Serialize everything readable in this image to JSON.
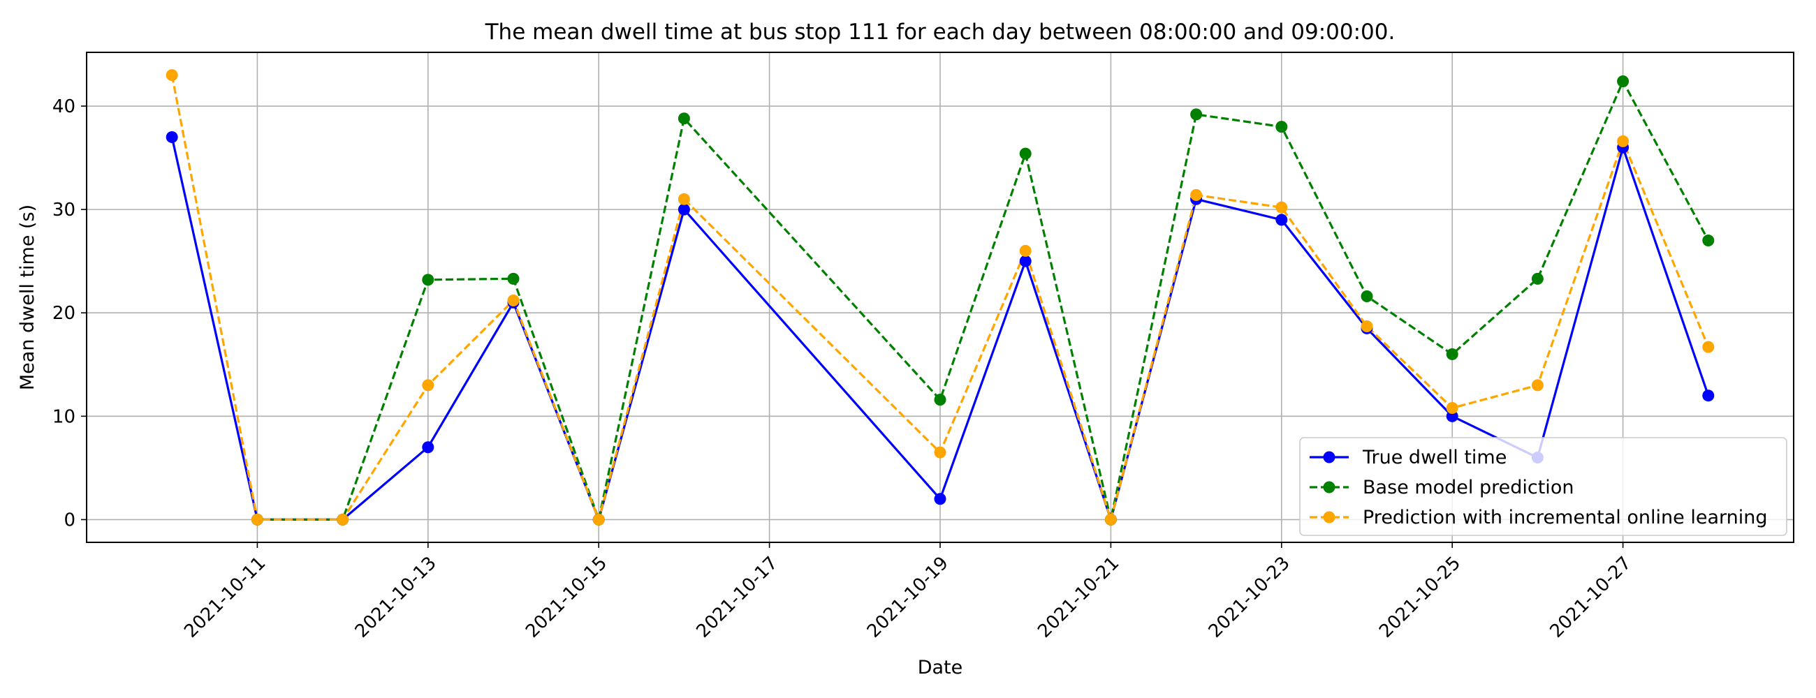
{
  "chart_data": {
    "type": "line",
    "title": "The mean dwell time at bus stop 111 for each day between 08:00:00 and 09:00:00.",
    "xlabel": "Date",
    "ylabel": "Mean dwell time (s)",
    "xlim": [
      "2021-10-09",
      "2021-10-29"
    ],
    "ylim": [
      -2.2,
      45.2
    ],
    "x_ticks": [
      "2021-10-11",
      "2021-10-13",
      "2021-10-15",
      "2021-10-17",
      "2021-10-19",
      "2021-10-21",
      "2021-10-23",
      "2021-10-25",
      "2021-10-27"
    ],
    "y_ticks": [
      0,
      10,
      20,
      30,
      40
    ],
    "grid": true,
    "legend_position": "lower-right",
    "series": [
      {
        "name": "True dwell time",
        "color": "#0000ff",
        "line_style": "solid",
        "x": [
          "2021-10-10",
          "2021-10-11",
          "2021-10-12",
          "2021-10-13",
          "2021-10-14",
          "2021-10-15",
          "2021-10-16",
          "2021-10-19",
          "2021-10-20",
          "2021-10-21",
          "2021-10-22",
          "2021-10-23",
          "2021-10-24",
          "2021-10-25",
          "2021-10-26",
          "2021-10-27",
          "2021-10-28"
        ],
        "values": [
          37,
          0,
          0,
          7,
          21,
          0,
          30,
          2,
          25,
          0,
          31,
          29,
          18.5,
          10,
          6,
          36,
          12
        ]
      },
      {
        "name": "Base model prediction",
        "color": "#008000",
        "line_style": "dashed",
        "x": [
          "2021-10-11",
          "2021-10-12",
          "2021-10-13",
          "2021-10-14",
          "2021-10-15",
          "2021-10-16",
          "2021-10-19",
          "2021-10-20",
          "2021-10-21",
          "2021-10-22",
          "2021-10-23",
          "2021-10-24",
          "2021-10-25",
          "2021-10-26",
          "2021-10-27",
          "2021-10-28"
        ],
        "values": [
          0,
          0,
          23.2,
          23.3,
          0,
          38.8,
          11.6,
          35.4,
          0,
          39.2,
          38,
          21.6,
          16,
          23.3,
          42.4,
          27
        ]
      },
      {
        "name": "Prediction with incremental online learning",
        "color": "#ffa500",
        "line_style": "dashed",
        "x": [
          "2021-10-10",
          "2021-10-11",
          "2021-10-12",
          "2021-10-13",
          "2021-10-14",
          "2021-10-15",
          "2021-10-16",
          "2021-10-19",
          "2021-10-20",
          "2021-10-21",
          "2021-10-22",
          "2021-10-23",
          "2021-10-24",
          "2021-10-25",
          "2021-10-26",
          "2021-10-27",
          "2021-10-28"
        ],
        "values": [
          43,
          0,
          0,
          13,
          21.2,
          0,
          31,
          6.5,
          26,
          0,
          31.4,
          30.2,
          18.7,
          10.8,
          13,
          36.6,
          16.7
        ]
      }
    ]
  }
}
